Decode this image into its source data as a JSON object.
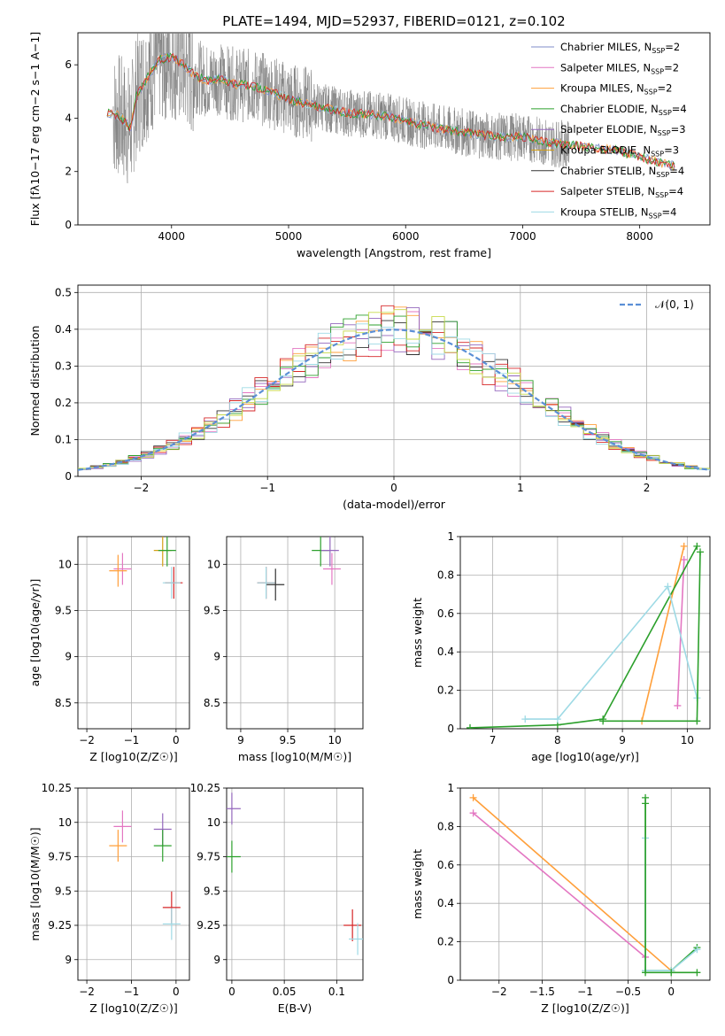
{
  "figure_title": "PLATE=1494, MJD=52937, FIBERID=0121, z=0.102",
  "legend": {
    "labels": [
      "Chabrier MILES, N",
      "Salpeter MILES, N",
      "Kroupa MILES, N",
      "Chabrier ELODIE, N",
      "Salpeter ELODIE, N",
      "Kroupa ELODIE, N",
      "Chabrier STELIB, N",
      "Salpeter STELIB, N",
      "Kroupa STELIB, N"
    ],
    "sub": "SSP",
    "eq": [
      "=2",
      "=2",
      "=2",
      "=4",
      "=3",
      "=3",
      "=4",
      "=4",
      "=4"
    ],
    "colors": [
      "#7f8cc8",
      "#e377c2",
      "#ff9f3a",
      "#2ca02c",
      "#9467bd",
      "#d4a017",
      "#333333",
      "#d62728",
      "#9edae5"
    ],
    "normal_label": "𝒩(0, 1)"
  },
  "chart_data": [
    {
      "id": "spectrum",
      "type": "line",
      "xlabel": "wavelength [Angstrom, rest frame]",
      "ylabel": "Flux [fλ10−17 erg cm−2 s−1 A−1]",
      "xlim": [
        3200,
        8600
      ],
      "ylim": [
        0,
        7.2
      ],
      "xticks": [
        4000,
        5000,
        6000,
        7000,
        8000
      ],
      "yticks": [
        0,
        2,
        4,
        6
      ],
      "data_color": "#808080",
      "data_range": [
        3500,
        7400
      ],
      "model_continuum": {
        "x": [
          3450,
          3550,
          3650,
          3700,
          3800,
          3900,
          4000,
          4100,
          4200,
          4300,
          4400,
          4500,
          4700,
          4850,
          5000,
          5200,
          5500,
          5800,
          6000,
          6300,
          6600,
          6800,
          7000,
          7200,
          7400,
          7800,
          8200,
          8300
        ],
        "y": [
          4.2,
          4.1,
          3.6,
          4.8,
          5.6,
          6.2,
          6.3,
          6.0,
          5.6,
          5.4,
          5.5,
          5.3,
          5.2,
          5.0,
          4.7,
          4.5,
          4.2,
          4.1,
          3.9,
          3.6,
          3.4,
          3.3,
          3.3,
          3.1,
          3.0,
          2.8,
          2.3,
          2.2
        ]
      }
    },
    {
      "id": "residuals",
      "type": "line",
      "xlabel": "(data-model)/error",
      "ylabel": "Normed distribution",
      "xlim": [
        -2.5,
        2.5
      ],
      "ylim": [
        0,
        0.52
      ],
      "xticks": [
        -2,
        -1,
        0,
        1,
        2
      ],
      "yticks": [
        0.0,
        0.1,
        0.2,
        0.3,
        0.4,
        0.5
      ]
    },
    {
      "id": "z_age",
      "type": "scatter",
      "xlabel": "Z [log10(Z/Z☉)]",
      "ylabel": "age [log10(age/yr)]",
      "xlim": [
        -2.2,
        0.3
      ],
      "ylim": [
        8.22,
        10.3
      ],
      "xticks": [
        -2,
        -1,
        0
      ],
      "yticks": [
        8.5,
        9.0,
        9.5,
        10.0
      ],
      "points": [
        {
          "series": 1,
          "x": -1.2,
          "y": 9.95
        },
        {
          "series": 2,
          "x": -1.3,
          "y": 9.93
        },
        {
          "series": 5,
          "x": -0.3,
          "y": 10.15
        },
        {
          "series": 3,
          "x": -0.2,
          "y": 10.15
        },
        {
          "series": 7,
          "x": -0.05,
          "y": 9.8
        },
        {
          "series": 8,
          "x": -0.1,
          "y": 9.8
        }
      ]
    },
    {
      "id": "mass_age",
      "type": "scatter",
      "xlabel": "mass [log10(M/M☉)]",
      "ylabel": "",
      "xlim": [
        8.85,
        10.3
      ],
      "ylim": [
        8.22,
        10.3
      ],
      "xticks": [
        9.0,
        9.5,
        10.0
      ],
      "yticks": [
        8.5,
        9.0,
        9.5,
        10.0
      ],
      "points": [
        {
          "series": 7,
          "x": 9.27,
          "y": 9.8
        },
        {
          "series": 8,
          "x": 9.27,
          "y": 9.8
        },
        {
          "series": 6,
          "x": 9.37,
          "y": 9.78
        },
        {
          "series": 1,
          "x": 9.97,
          "y": 9.95
        },
        {
          "series": 3,
          "x": 9.85,
          "y": 10.15
        },
        {
          "series": 4,
          "x": 9.95,
          "y": 10.15
        }
      ]
    },
    {
      "id": "age_weight",
      "type": "line",
      "xlabel": "age [log10(age/yr)]",
      "ylabel": "mass weight",
      "xlim": [
        6.5,
        10.35
      ],
      "ylim": [
        0,
        1.0
      ],
      "xticks": [
        7,
        8,
        9,
        10
      ],
      "yticks": [
        0.0,
        0.2,
        0.4,
        0.6,
        0.8,
        1.0
      ],
      "series": [
        {
          "color_index": 1,
          "x": [
            9.85,
            9.95
          ],
          "y": [
            0.12,
            0.88
          ]
        },
        {
          "color_index": 2,
          "x": [
            9.3,
            9.95
          ],
          "y": [
            0.04,
            0.95
          ]
        },
        {
          "color_index": 3,
          "x": [
            6.65,
            8.0,
            8.7,
            10.15
          ],
          "y": [
            0.005,
            0.02,
            0.05,
            0.95
          ]
        },
        {
          "color_index": 8,
          "x": [
            7.5,
            8.0,
            9.7,
            10.15
          ],
          "y": [
            0.05,
            0.05,
            0.74,
            0.16
          ]
        },
        {
          "color_index": 3,
          "x": [
            8.7,
            10.15,
            10.2
          ],
          "y": [
            0.04,
            0.04,
            0.92
          ]
        }
      ]
    },
    {
      "id": "z_mass",
      "type": "scatter",
      "xlabel": "Z [log10(Z/Z☉)]",
      "ylabel": "mass [log10(M/M☉)]",
      "xlim": [
        -2.2,
        0.3
      ],
      "ylim": [
        8.85,
        10.25
      ],
      "xticks": [
        -2,
        -1,
        0
      ],
      "yticks": [
        9.0,
        9.25,
        9.5,
        9.75,
        10.0,
        10.25
      ],
      "points": [
        {
          "series": 1,
          "x": -1.2,
          "y": 9.97
        },
        {
          "series": 2,
          "x": -1.3,
          "y": 9.83
        },
        {
          "series": 4,
          "x": -0.3,
          "y": 9.95
        },
        {
          "series": 3,
          "x": -0.3,
          "y": 9.83
        },
        {
          "series": 7,
          "x": -0.1,
          "y": 9.38
        },
        {
          "series": 8,
          "x": -0.1,
          "y": 9.26
        }
      ]
    },
    {
      "id": "ebv_mass",
      "type": "scatter",
      "xlabel": "E(B-V)",
      "ylabel": "",
      "xlim": [
        -0.005,
        0.125
      ],
      "ylim": [
        8.85,
        10.25
      ],
      "xticks": [
        0.0,
        0.05,
        0.1
      ],
      "yticks": [
        9.0,
        9.25,
        9.5,
        9.75,
        10.0,
        10.25
      ],
      "points": [
        {
          "series": 4,
          "x": 0.0,
          "y": 10.1
        },
        {
          "series": 3,
          "x": 0.0,
          "y": 9.75
        },
        {
          "series": 7,
          "x": 0.115,
          "y": 9.25
        },
        {
          "series": 8,
          "x": 0.12,
          "y": 9.15
        }
      ]
    },
    {
      "id": "z_weight",
      "type": "line",
      "xlabel": "Z [log10(Z/Z☉)]",
      "ylabel": "mass weight",
      "xlim": [
        -2.45,
        0.45
      ],
      "ylim": [
        0,
        1.0
      ],
      "xticks": [
        -2.0,
        -1.5,
        -1.0,
        -0.5,
        0.0
      ],
      "yticks": [
        0.0,
        0.2,
        0.4,
        0.6,
        0.8,
        1.0
      ],
      "series": [
        {
          "color_index": 1,
          "x": [
            -2.3,
            -0.3
          ],
          "y": [
            0.87,
            0.12
          ]
        },
        {
          "color_index": 2,
          "x": [
            -2.3,
            0.0
          ],
          "y": [
            0.95,
            0.05
          ]
        },
        {
          "color_index": 3,
          "x": [
            -0.3,
            -0.3,
            0.0,
            0.3
          ],
          "y": [
            0.95,
            0.05,
            0.05,
            0.17
          ]
        },
        {
          "color_index": 8,
          "x": [
            -0.3,
            -0.3,
            0.0,
            0.3
          ],
          "y": [
            0.74,
            0.05,
            0.05,
            0.16
          ]
        },
        {
          "color_index": 3,
          "x": [
            -0.3,
            -0.3,
            0.0,
            0.3
          ],
          "y": [
            0.92,
            0.04,
            0.04,
            0.04
          ]
        }
      ]
    }
  ]
}
